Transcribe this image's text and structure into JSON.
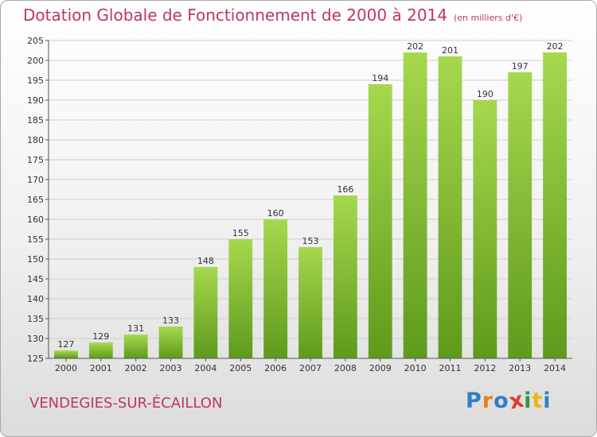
{
  "chart_data": {
    "type": "bar",
    "title": "Dotation Globale de Fonctionnement de 2000 à 2014",
    "unit_note": "(en milliers d'€)",
    "categories": [
      "2000",
      "2001",
      "2002",
      "2003",
      "2004",
      "2005",
      "2006",
      "2007",
      "2008",
      "2009",
      "2010",
      "2011",
      "2012",
      "2013",
      "2014"
    ],
    "values": [
      127,
      129,
      131,
      133,
      148,
      155,
      160,
      153,
      166,
      194,
      202,
      201,
      190,
      197,
      202
    ],
    "ylim": [
      125,
      205
    ],
    "ytick_step": 5,
    "grid": true,
    "bar_color": "#7cbf2e",
    "bar_color_light": "#a6d84e",
    "bar_color_dark": "#5e9a1c"
  },
  "city": "VENDEGIES-SUR-ÉCAILLON",
  "logo": {
    "letters": [
      "P",
      "r",
      "o",
      "x",
      "i",
      "t",
      "i"
    ],
    "colors": [
      "#2f7fc8",
      "#f07e1a",
      "#2f7fc8",
      "#e03a2f",
      "#2f9a3c",
      "#f0b41a",
      "#2f7fc8"
    ]
  }
}
